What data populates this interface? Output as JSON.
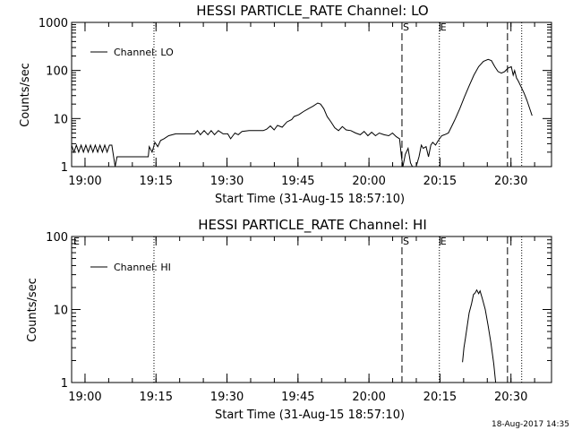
{
  "chart_data": [
    {
      "type": "line",
      "title": "HESSI PARTICLE_RATE Channel: LO",
      "xlabel": "Start Time (31-Aug-15 18:57:10)",
      "ylabel": "Counts/sec",
      "x_unit": "minutes after 18:57:10",
      "xlim": [
        0,
        101.4
      ],
      "ylim": [
        1,
        1000
      ],
      "yscale": "log",
      "x_ticks": [
        {
          "t": 2.83,
          "label": "19:00"
        },
        {
          "t": 17.83,
          "label": "19:15"
        },
        {
          "t": 32.83,
          "label": "19:30"
        },
        {
          "t": 47.83,
          "label": "19:45"
        },
        {
          "t": 62.83,
          "label": "20:00"
        },
        {
          "t": 77.83,
          "label": "20:15"
        },
        {
          "t": 92.83,
          "label": "20:30"
        }
      ],
      "y_ticks": [
        {
          "v": 1,
          "label": "1"
        },
        {
          "v": 10,
          "label": "10"
        },
        {
          "v": 100,
          "label": "100"
        },
        {
          "v": 1000,
          "label": "1000"
        }
      ],
      "legend": {
        "position": "top-left",
        "entries": [
          "Channel: LO"
        ]
      },
      "annotations": [
        {
          "t": 69.8,
          "label": "S",
          "style": "dashed"
        },
        {
          "t": 77.7,
          "label": "E",
          "style": "dotted"
        },
        {
          "t": 17.4,
          "label": "",
          "style": "dotted"
        },
        {
          "t": 92.1,
          "label": "",
          "style": "dashed"
        },
        {
          "t": 95.1,
          "label": "",
          "style": "dotted"
        }
      ],
      "series": [
        {
          "name": "Channel: LO",
          "points": [
            [
              0.0,
              2.8
            ],
            [
              0.5,
              2.0
            ],
            [
              1.0,
              2.8
            ],
            [
              1.5,
              2.0
            ],
            [
              2.0,
              2.8
            ],
            [
              2.5,
              2.0
            ],
            [
              3.0,
              2.8
            ],
            [
              3.5,
              2.0
            ],
            [
              4.0,
              2.8
            ],
            [
              4.5,
              2.0
            ],
            [
              5.0,
              2.8
            ],
            [
              5.5,
              2.0
            ],
            [
              6.0,
              2.8
            ],
            [
              6.5,
              2.0
            ],
            [
              7.0,
              2.8
            ],
            [
              7.5,
              2.0
            ],
            [
              8.0,
              2.8
            ],
            [
              8.5,
              2.8
            ],
            [
              9.2,
              1.0
            ],
            [
              9.6,
              1.6
            ],
            [
              10.4,
              1.6
            ],
            [
              12.0,
              1.6
            ],
            [
              13.8,
              1.6
            ],
            [
              15.0,
              1.6
            ],
            [
              16.2,
              1.6
            ],
            [
              16.4,
              2.6
            ],
            [
              17.0,
              2.0
            ],
            [
              17.6,
              3.2
            ],
            [
              18.2,
              2.6
            ],
            [
              18.8,
              3.5
            ],
            [
              19.5,
              3.8
            ],
            [
              20.5,
              4.4
            ],
            [
              22.0,
              4.8
            ],
            [
              24.0,
              4.8
            ],
            [
              26.0,
              4.8
            ],
            [
              26.6,
              5.6
            ],
            [
              27.2,
              4.6
            ],
            [
              28.0,
              5.6
            ],
            [
              28.8,
              4.6
            ],
            [
              29.5,
              5.6
            ],
            [
              30.2,
              4.6
            ],
            [
              31.0,
              5.6
            ],
            [
              32.0,
              4.8
            ],
            [
              33.0,
              4.8
            ],
            [
              33.6,
              3.8
            ],
            [
              34.5,
              5.0
            ],
            [
              35.2,
              4.6
            ],
            [
              36.0,
              5.4
            ],
            [
              37.5,
              5.6
            ],
            [
              39.0,
              5.6
            ],
            [
              40.5,
              5.6
            ],
            [
              41.2,
              6.0
            ],
            [
              42.0,
              7.0
            ],
            [
              42.8,
              5.8
            ],
            [
              43.5,
              7.2
            ],
            [
              44.5,
              6.6
            ],
            [
              45.5,
              8.5
            ],
            [
              46.5,
              9.5
            ],
            [
              47.0,
              11.0
            ],
            [
              48.0,
              12.0
            ],
            [
              49.0,
              14.0
            ],
            [
              50.0,
              16.0
            ],
            [
              51.0,
              18.0
            ],
            [
              52.0,
              21.0
            ],
            [
              52.6,
              20.0
            ],
            [
              53.3,
              16.0
            ],
            [
              54.0,
              11.0
            ],
            [
              54.8,
              8.5
            ],
            [
              55.6,
              6.4
            ],
            [
              56.4,
              5.6
            ],
            [
              57.2,
              6.8
            ],
            [
              58.0,
              5.8
            ],
            [
              59.0,
              5.6
            ],
            [
              60.0,
              5.0
            ],
            [
              61.0,
              4.6
            ],
            [
              61.8,
              5.4
            ],
            [
              62.6,
              4.4
            ],
            [
              63.4,
              5.2
            ],
            [
              64.2,
              4.4
            ],
            [
              65.0,
              5.0
            ],
            [
              66.0,
              4.6
            ],
            [
              67.0,
              4.4
            ],
            [
              67.8,
              5.0
            ],
            [
              68.6,
              4.2
            ],
            [
              69.3,
              3.8
            ],
            [
              69.7,
              1.6
            ],
            [
              70.0,
              1.0
            ],
            [
              70.5,
              1.8
            ],
            [
              71.1,
              2.4
            ],
            [
              71.6,
              1.2
            ],
            [
              72.0,
              1.0
            ],
            [
              72.8,
              1.0
            ],
            [
              73.4,
              1.6
            ],
            [
              73.9,
              2.8
            ],
            [
              74.3,
              2.4
            ],
            [
              74.9,
              2.6
            ],
            [
              75.4,
              1.6
            ],
            [
              75.9,
              2.8
            ],
            [
              76.3,
              3.2
            ],
            [
              76.9,
              2.8
            ],
            [
              77.4,
              3.4
            ],
            [
              78.2,
              4.4
            ],
            [
              78.8,
              4.6
            ],
            [
              79.6,
              5.0
            ],
            [
              80.4,
              7.2
            ],
            [
              81.1,
              10.0
            ],
            [
              82.0,
              16.0
            ],
            [
              83.0,
              28.0
            ],
            [
              84.0,
              48.0
            ],
            [
              85.0,
              80.0
            ],
            [
              86.0,
              120.0
            ],
            [
              87.0,
              155.0
            ],
            [
              88.0,
              170.0
            ],
            [
              88.7,
              160.0
            ],
            [
              89.4,
              120.0
            ],
            [
              90.1,
              95.0
            ],
            [
              90.8,
              88.0
            ],
            [
              91.5,
              95.0
            ],
            [
              92.2,
              112.0
            ],
            [
              92.9,
              120.0
            ],
            [
              93.3,
              80.0
            ],
            [
              93.6,
              100.0
            ],
            [
              94.0,
              70.0
            ],
            [
              94.4,
              60.0
            ],
            [
              95.0,
              45.0
            ],
            [
              95.6,
              34.0
            ],
            [
              96.2,
              24.0
            ],
            [
              96.8,
              16.0
            ],
            [
              97.3,
              11.5
            ]
          ]
        }
      ]
    },
    {
      "type": "line",
      "title": "HESSI PARTICLE_RATE Channel: HI",
      "xlabel": "Start Time (31-Aug-15 18:57:10)",
      "ylabel": "Counts/sec",
      "x_unit": "minutes after 18:57:10",
      "xlim": [
        0,
        101.4
      ],
      "ylim": [
        1,
        100
      ],
      "yscale": "log",
      "x_ticks": [
        {
          "t": 2.83,
          "label": "19:00"
        },
        {
          "t": 17.83,
          "label": "19:15"
        },
        {
          "t": 32.83,
          "label": "19:30"
        },
        {
          "t": 47.83,
          "label": "19:45"
        },
        {
          "t": 62.83,
          "label": "20:00"
        },
        {
          "t": 77.83,
          "label": "20:15"
        },
        {
          "t": 92.83,
          "label": "20:30"
        }
      ],
      "y_ticks": [
        {
          "v": 1,
          "label": "1"
        },
        {
          "v": 10,
          "label": "10"
        },
        {
          "v": 100,
          "label": "100"
        }
      ],
      "legend": {
        "position": "top-left",
        "entries": [
          "Channel: HI"
        ]
      },
      "annotations": [
        {
          "t": 0.2,
          "label": "E",
          "style": "none"
        },
        {
          "t": 69.8,
          "label": "S",
          "style": "dashed"
        },
        {
          "t": 77.7,
          "label": "E",
          "style": "dotted"
        },
        {
          "t": 17.4,
          "label": "",
          "style": "dotted"
        },
        {
          "t": 92.1,
          "label": "",
          "style": "dashed"
        },
        {
          "t": 95.1,
          "label": "",
          "style": "dotted"
        }
      ],
      "series": [
        {
          "name": "Channel: HI",
          "points": [
            [
              82.6,
              1.9
            ],
            [
              82.9,
              3.0
            ],
            [
              83.2,
              4.0
            ],
            [
              83.6,
              6.0
            ],
            [
              84.0,
              9.0
            ],
            [
              84.5,
              12.0
            ],
            [
              84.9,
              16.0
            ],
            [
              85.3,
              17.0
            ],
            [
              85.6,
              18.5
            ],
            [
              86.0,
              16.5
            ],
            [
              86.3,
              18.0
            ],
            [
              86.8,
              14.0
            ],
            [
              87.4,
              10.0
            ],
            [
              88.0,
              6.0
            ],
            [
              88.6,
              3.5
            ],
            [
              89.2,
              1.8
            ],
            [
              89.6,
              1.0
            ]
          ]
        }
      ]
    }
  ],
  "footer_timestamp": "18-Aug-2017 14:35"
}
